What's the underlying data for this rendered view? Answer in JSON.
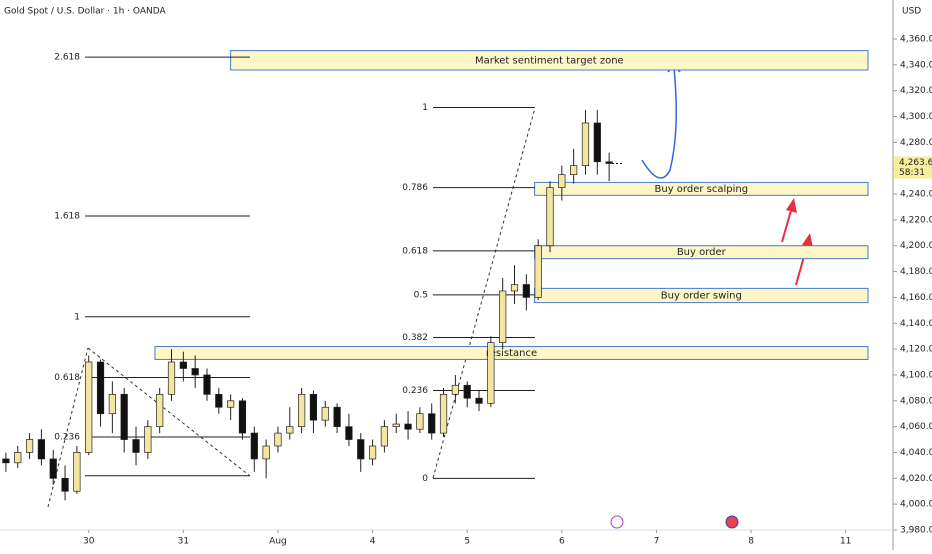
{
  "chart_data": {
    "type": "candlestick",
    "title": "Gold Spot / U.S. Dollar · 1h · OANDA",
    "currency": "USD",
    "ylim": [
      3980,
      4360
    ],
    "yticks": [
      {
        "value": 3980,
        "label": "3,980.000"
      },
      {
        "value": 4000,
        "label": "4,000.000"
      },
      {
        "value": 4020,
        "label": "4,020.000"
      },
      {
        "value": 4040,
        "label": "4,040.000"
      },
      {
        "value": 4060,
        "label": "4,060.000"
      },
      {
        "value": 4080,
        "label": "4,080.000"
      },
      {
        "value": 4100,
        "label": "4,100.000"
      },
      {
        "value": 4120,
        "label": "4,120.000"
      },
      {
        "value": 4140,
        "label": "4,140.000"
      },
      {
        "value": 4160,
        "label": "4,160.000"
      },
      {
        "value": 4180,
        "label": "4,180.000"
      },
      {
        "value": 4200,
        "label": "4,200.000"
      },
      {
        "value": 4220,
        "label": "4,220.000"
      },
      {
        "value": 4240,
        "label": "4,240.000"
      },
      {
        "value": 4260,
        "label": "4,260.000"
      },
      {
        "value": 4280,
        "label": "4,280.000"
      },
      {
        "value": 4300,
        "label": "4,300.000"
      },
      {
        "value": 4320,
        "label": "4,320.000"
      },
      {
        "value": 4340,
        "label": "4,340.000"
      },
      {
        "value": 4360,
        "label": "4,360.000"
      }
    ],
    "xlim": [
      -0.5,
      75
    ],
    "xticks": [
      {
        "value": 7,
        "label": "30"
      },
      {
        "value": 15,
        "label": "31"
      },
      {
        "value": 23,
        "label": "Aug"
      },
      {
        "value": 31,
        "label": "4"
      },
      {
        "value": 39,
        "label": "5"
      },
      {
        "value": 47,
        "label": "6"
      },
      {
        "value": 55,
        "label": "7"
      },
      {
        "value": 63,
        "label": "8"
      },
      {
        "value": 71,
        "label": "11"
      }
    ],
    "up_color": "#f3e6a1",
    "down_color": "#111111",
    "candles": {
      "open": [
        4035,
        4032,
        4040,
        4050,
        4035,
        4020,
        4010,
        4040,
        4110,
        4070,
        4085,
        4050,
        4040,
        4060,
        4085,
        4110,
        4105,
        4100,
        4085,
        4075,
        4080,
        4055,
        4035,
        4045,
        4055,
        4060,
        4085,
        4065,
        4075,
        4060,
        4050,
        4035,
        4045,
        4060,
        4062,
        4058,
        4070,
        4055,
        4085,
        4092,
        4082,
        4078,
        4125,
        4165,
        4170,
        4160,
        4200,
        4245,
        4255,
        4262,
        4295,
        4265
      ],
      "high": [
        4040,
        4045,
        4055,
        4058,
        4042,
        4030,
        4045,
        4115,
        4112,
        4095,
        4090,
        4060,
        4065,
        4090,
        4120,
        4118,
        4115,
        4105,
        4090,
        4085,
        4082,
        4060,
        4050,
        4060,
        4075,
        4090,
        4088,
        4080,
        4078,
        4070,
        4055,
        4050,
        4065,
        4070,
        4072,
        4075,
        4078,
        4090,
        4100,
        4095,
        4088,
        4130,
        4175,
        4185,
        4178,
        4205,
        4250,
        4262,
        4275,
        4305,
        4305,
        4272
      ],
      "low": [
        4025,
        4028,
        4035,
        4030,
        4015,
        4003,
        4008,
        4038,
        4060,
        4055,
        4040,
        4030,
        4035,
        4055,
        4080,
        4095,
        4090,
        4080,
        4070,
        4065,
        4050,
        4025,
        4020,
        4040,
        4050,
        4055,
        4055,
        4060,
        4055,
        4045,
        4025,
        4030,
        4040,
        4055,
        4050,
        4055,
        4050,
        4052,
        4078,
        4075,
        4072,
        4075,
        4120,
        4155,
        4150,
        4158,
        4195,
        4235,
        4248,
        4255,
        4255,
        4250
      ],
      "close": [
        4032,
        4040,
        4050,
        4035,
        4020,
        4010,
        4040,
        4110,
        4070,
        4085,
        4050,
        4040,
        4060,
        4085,
        4110,
        4105,
        4100,
        4085,
        4075,
        4080,
        4055,
        4035,
        4045,
        4055,
        4060,
        4085,
        4065,
        4075,
        4060,
        4050,
        4035,
        4045,
        4060,
        4062,
        4058,
        4070,
        4055,
        4085,
        4092,
        4082,
        4078,
        4125,
        4165,
        4170,
        4160,
        4200,
        4245,
        4255,
        4262,
        4295,
        4265,
        4263.68
      ]
    },
    "last_price": {
      "value": 4263.68,
      "label": "4,263.680",
      "countdown": "58:31"
    },
    "fib_left": [
      {
        "label": "2.618",
        "value": 4346
      },
      {
        "label": "1.618",
        "value": 4223
      },
      {
        "label": "1",
        "value": 4145
      },
      {
        "label": "0.618",
        "value": 4098
      },
      {
        "label": "0.236",
        "value": 4052
      },
      {
        "label": null,
        "value": 4022
      }
    ],
    "fib_right": [
      {
        "label": "1",
        "value": 4307
      },
      {
        "label": "0.786",
        "value": 4245
      },
      {
        "label": "0.618",
        "value": 4196
      },
      {
        "label": "0.5",
        "value": 4162
      },
      {
        "label": "0.382",
        "value": 4129
      },
      {
        "label": "0.236",
        "value": 4088
      },
      {
        "label": "0",
        "value": 4020
      }
    ],
    "zones": [
      {
        "label": "Market sentiment target zone",
        "top": 4351,
        "bottom": 4336,
        "start": 19
      },
      {
        "label": "Buy order scalping",
        "top": 4249,
        "bottom": 4239,
        "start": 44.7
      },
      {
        "label": "Buy order",
        "top": 4200,
        "bottom": 4190,
        "start": 44.7
      },
      {
        "label": "Buy order swing",
        "top": 4167,
        "bottom": 4156,
        "start": 44.7
      },
      {
        "label": "resistance",
        "top": 4122,
        "bottom": 4112,
        "start": 12.6
      }
    ]
  }
}
